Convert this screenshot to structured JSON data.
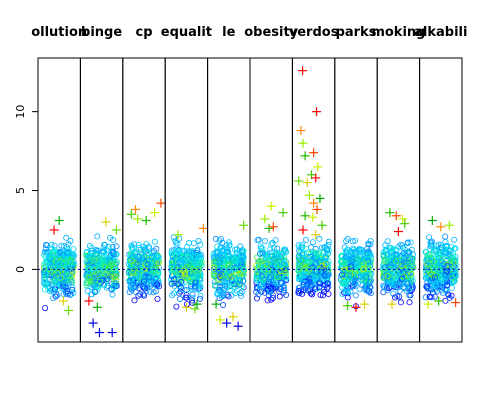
{
  "chart_data": {
    "type": "scatter",
    "title": "",
    "xlabel": "",
    "ylabel": "",
    "ylim": [
      -4.6,
      13.4
    ],
    "yticks": [
      0,
      5,
      10
    ],
    "reference_line": {
      "y": 0,
      "style": "dotted"
    },
    "grid": false,
    "legend": "none",
    "panels": [
      {
        "label": "ollution",
        "summary": {
          "min": -2.6,
          "max": 3.1
        },
        "outliers": [
          [
            0.38,
            2.5
          ],
          [
            0.6,
            -2.0
          ],
          [
            0.72,
            -2.6
          ],
          [
            0.5,
            3.1
          ]
        ]
      },
      {
        "label": "binge",
        "summary": {
          "min": -4.0,
          "max": 3.0
        },
        "outliers": [
          [
            0.3,
            -3.4
          ],
          [
            0.45,
            -4.0
          ],
          [
            0.75,
            -4.0
          ],
          [
            0.2,
            -2.0
          ],
          [
            0.6,
            3.0
          ],
          [
            0.85,
            2.5
          ],
          [
            0.4,
            -2.4
          ]
        ]
      },
      {
        "label": "cp",
        "summary": {
          "min": -2.0,
          "max": 4.3
        },
        "outliers": [
          [
            0.3,
            3.8
          ],
          [
            0.35,
            3.2
          ],
          [
            0.55,
            3.1
          ],
          [
            0.9,
            4.2
          ],
          [
            0.75,
            3.6
          ],
          [
            0.2,
            3.5
          ]
        ]
      },
      {
        "label": "equalit",
        "summary": {
          "min": -2.8,
          "max": 2.7
        },
        "outliers": [
          [
            0.5,
            -2.4
          ],
          [
            0.7,
            -2.5
          ],
          [
            0.75,
            -2.2
          ],
          [
            0.9,
            2.6
          ],
          [
            0.3,
            2.2
          ]
        ]
      },
      {
        "label": "le",
        "summary": {
          "min": -3.6,
          "max": 2.8
        },
        "outliers": [
          [
            0.3,
            -3.2
          ],
          [
            0.45,
            -3.4
          ],
          [
            0.72,
            -3.6
          ],
          [
            0.6,
            -3.0
          ],
          [
            0.85,
            2.8
          ],
          [
            0.2,
            -2.2
          ]
        ]
      },
      {
        "label": "obesity",
        "summary": {
          "min": -2.0,
          "max": 4.0
        },
        "outliers": [
          [
            0.35,
            3.2
          ],
          [
            0.45,
            2.6
          ],
          [
            0.55,
            2.7
          ],
          [
            0.5,
            4.0
          ],
          [
            0.78,
            3.6
          ]
        ]
      },
      {
        "label": "verdos",
        "summary": {
          "min": -1.8,
          "max": 12.6
        },
        "outliers": [
          [
            0.24,
            12.6
          ],
          [
            0.57,
            10.0
          ],
          [
            0.2,
            8.8
          ],
          [
            0.25,
            8.0
          ],
          [
            0.3,
            7.2
          ],
          [
            0.5,
            7.4
          ],
          [
            0.6,
            6.5
          ],
          [
            0.45,
            6.0
          ],
          [
            0.55,
            5.8
          ],
          [
            0.35,
            5.5
          ],
          [
            0.15,
            5.6
          ],
          [
            0.65,
            4.5
          ],
          [
            0.5,
            4.2
          ],
          [
            0.4,
            4.7
          ],
          [
            0.3,
            3.4
          ],
          [
            0.58,
            3.8
          ],
          [
            0.48,
            3.3
          ],
          [
            0.7,
            2.8
          ],
          [
            0.25,
            2.5
          ],
          [
            0.55,
            2.2
          ]
        ]
      },
      {
        "label": "parks",
        "summary": {
          "min": -2.4,
          "max": 2.0
        },
        "outliers": [
          [
            0.3,
            -2.3
          ],
          [
            0.5,
            -2.4
          ],
          [
            0.7,
            -2.2
          ]
        ]
      },
      {
        "label": "moking",
        "summary": {
          "min": -2.2,
          "max": 3.6
        },
        "outliers": [
          [
            0.3,
            3.6
          ],
          [
            0.45,
            3.4
          ],
          [
            0.6,
            3.2
          ],
          [
            0.65,
            2.9
          ],
          [
            0.5,
            2.4
          ],
          [
            0.35,
            -2.2
          ]
        ]
      },
      {
        "label": "alkabili",
        "summary": {
          "min": -2.2,
          "max": 3.2
        },
        "outliers": [
          [
            0.3,
            3.1
          ],
          [
            0.5,
            2.7
          ],
          [
            0.7,
            2.8
          ],
          [
            0.45,
            -2.0
          ],
          [
            0.85,
            -2.1
          ],
          [
            0.2,
            -2.2
          ]
        ]
      }
    ]
  }
}
